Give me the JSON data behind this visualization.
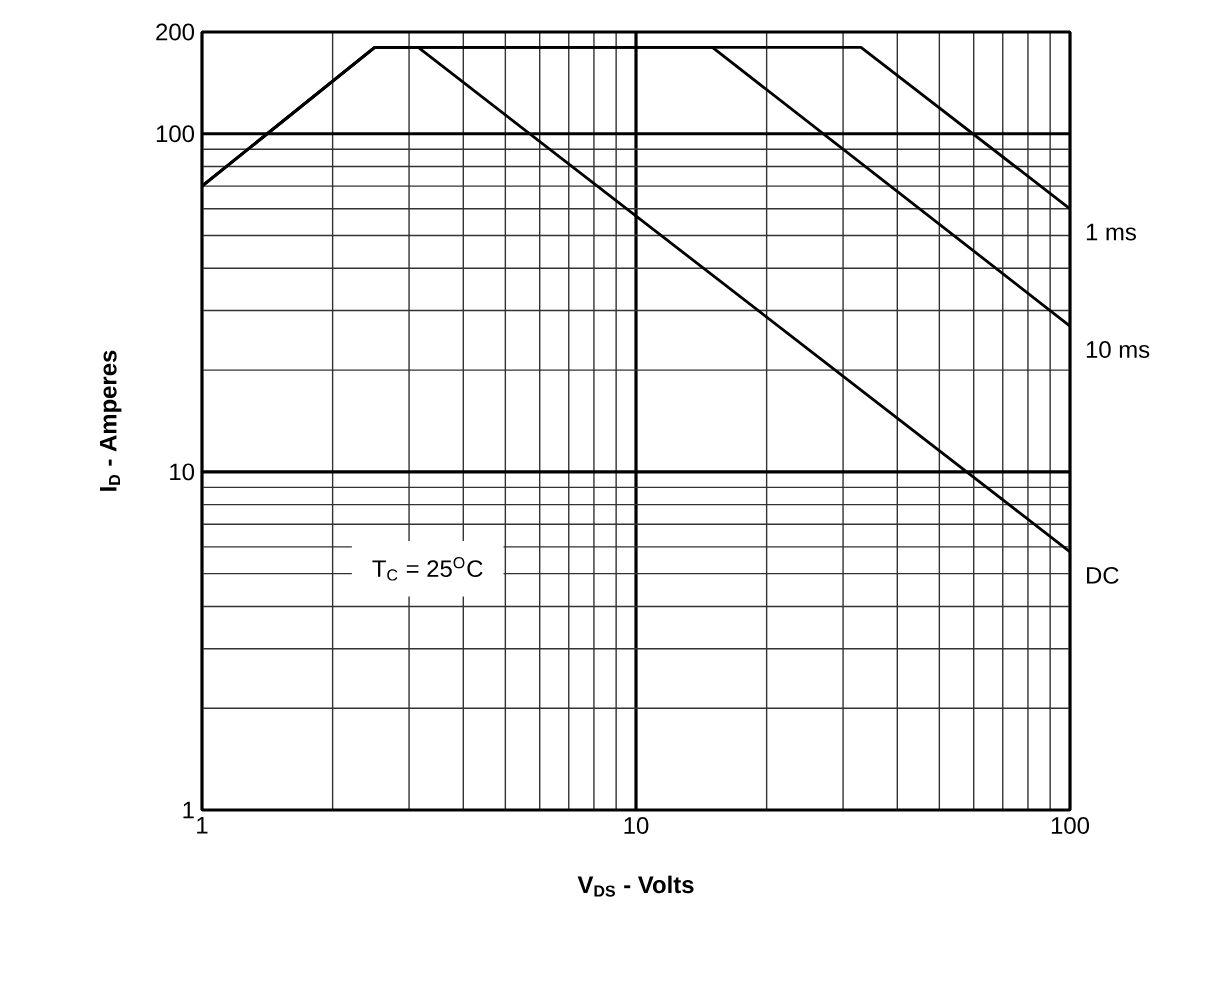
{
  "chart_data": {
    "type": "line",
    "xlabel": "**V$_{DS}$ - Volts**",
    "ylabel": "**I$_{D}$ - Amperes**",
    "log": "xy",
    "xlim": [
      1,
      100
    ],
    "ylim": [
      1,
      200
    ],
    "xticks": [
      1,
      10,
      100
    ],
    "yticks": [
      1,
      10,
      100,
      200
    ],
    "grid": true,
    "legend": false,
    "marker": "none",
    "line_style": "solid",
    "annotations": [
      "T$_{C}$ = 25$^{O}$C"
    ],
    "series": [
      {
        "name": "1 ms",
        "color": "#000000",
        "x": [
          1,
          2.5,
          33,
          100
        ],
        "values": [
          70,
          180,
          180,
          60
        ]
      },
      {
        "name": "10 ms",
        "color": "#000000",
        "x": [
          1,
          2.5,
          15,
          100
        ],
        "values": [
          70,
          180,
          180,
          27
        ]
      },
      {
        "name": "DC",
        "color": "#000000",
        "x": [
          1,
          2.5,
          3.15,
          100
        ],
        "values": [
          70,
          180,
          180,
          5.8
        ]
      }
    ]
  }
}
